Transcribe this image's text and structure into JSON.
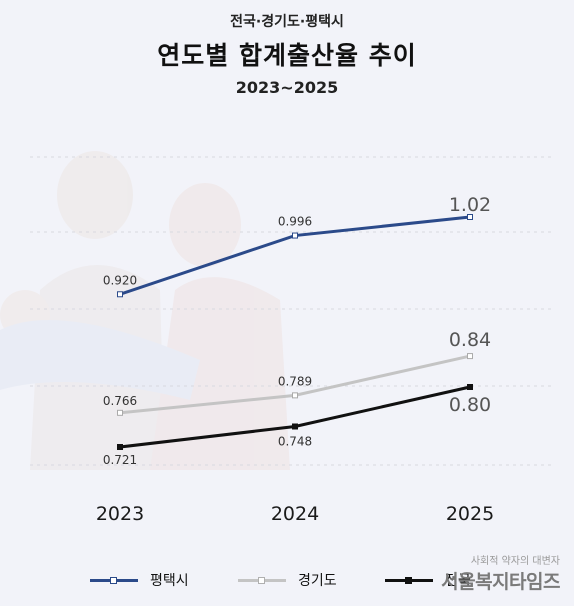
{
  "header": {
    "subtitle": "전국·경기도·평택시",
    "title": "연도별 합계출산율 추이",
    "period": "2023~2025"
  },
  "chart_data": {
    "type": "line",
    "categories": [
      "2023",
      "2024",
      "2025"
    ],
    "series": [
      {
        "name": "평택시",
        "color": "#2b4a8a",
        "values": [
          0.92,
          0.996,
          1.02
        ],
        "labels": [
          "0.920",
          "0.996",
          "1.02"
        ]
      },
      {
        "name": "경기도",
        "color": "#c4c4c4",
        "values": [
          0.766,
          0.789,
          0.84
        ],
        "labels": [
          "0.766",
          "0.789",
          "0.84"
        ]
      },
      {
        "name": "전국",
        "color": "#111111",
        "values": [
          0.721,
          0.748,
          0.8
        ],
        "labels": [
          "0.721",
          "0.748",
          "0.80"
        ]
      }
    ],
    "grid": true,
    "legend_position": "bottom"
  },
  "legend": {
    "items": [
      "평택시",
      "경기도",
      "전국"
    ]
  },
  "watermark": {
    "tagline": "사회적 약자의 대변자",
    "brand": "서울복지타임즈"
  }
}
